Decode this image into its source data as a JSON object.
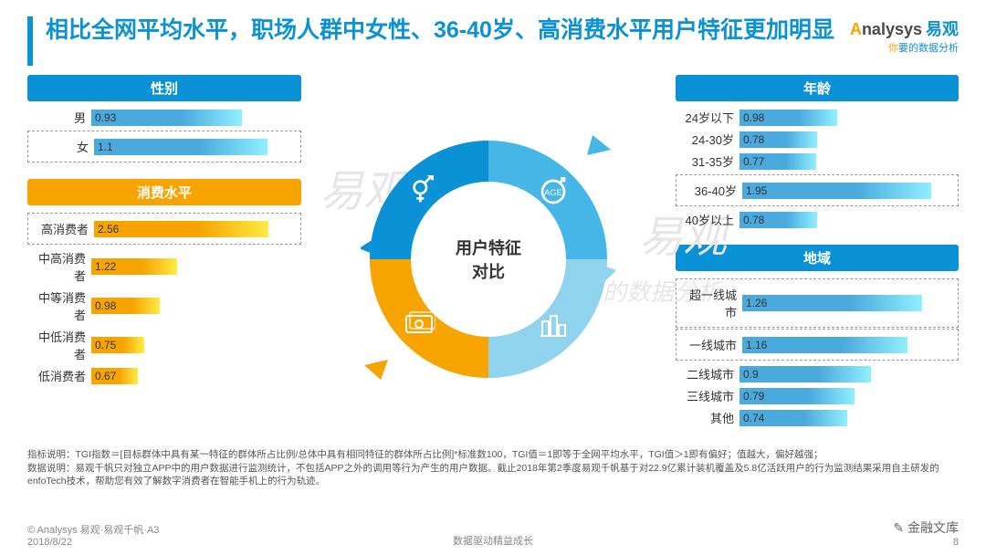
{
  "title": "相比全网平均水平，职场人群中女性、36-40岁、高消费水平用户特征更加明显",
  "logo": {
    "line1a": "nalysys",
    "cn": "易观",
    "line2": "要的数据分析",
    "line2y": "你",
    "circle": "A"
  },
  "center_labels": {
    "l1": "用户特征",
    "l2": "对比"
  },
  "quad_colors": {
    "tl": "#0b92d6",
    "tr": "#46b6e6",
    "bl": "#f7a400",
    "br": "#8fd3ef"
  },
  "sections": {
    "gender": {
      "title": "性别",
      "max": 1.3,
      "color": "#4aa9dd",
      "rows": [
        {
          "label": "男",
          "value": 0.93,
          "highlight": false
        },
        {
          "label": "女",
          "value": 1.1,
          "highlight": true
        }
      ]
    },
    "spend": {
      "title": "消费水平",
      "max": 3.0,
      "color": "#f7a400",
      "rows": [
        {
          "label": "高消费者",
          "value": 2.56,
          "highlight": true
        },
        {
          "label": "中高消费者",
          "value": 1.22,
          "highlight": false
        },
        {
          "label": "中等消费者",
          "value": 0.98,
          "highlight": false
        },
        {
          "label": "中低消费者",
          "value": 0.75,
          "highlight": false
        },
        {
          "label": "低消费者",
          "value": 0.67,
          "highlight": false
        }
      ]
    },
    "age": {
      "title": "年龄",
      "max": 2.2,
      "color": "#4aa9dd",
      "rows": [
        {
          "label": "24岁以下",
          "value": 0.98,
          "highlight": false
        },
        {
          "label": "24-30岁",
          "value": 0.78,
          "highlight": false
        },
        {
          "label": "31-35岁",
          "value": 0.77,
          "highlight": false
        },
        {
          "label": "36-40岁",
          "value": 1.95,
          "highlight": true
        },
        {
          "label": "40岁以上",
          "value": 0.78,
          "highlight": false
        }
      ]
    },
    "region": {
      "title": "地域",
      "max": 1.5,
      "color": "#4aa9dd",
      "rows": [
        {
          "label": "超一线城市",
          "value": 1.26,
          "highlight": true
        },
        {
          "label": "一线城市",
          "value": 1.16,
          "highlight": true
        },
        {
          "label": "二线城市",
          "value": 0.9,
          "highlight": false
        },
        {
          "label": "三线城市",
          "value": 0.79,
          "highlight": false
        },
        {
          "label": "其他",
          "value": 0.74,
          "highlight": false
        }
      ]
    }
  },
  "notes": {
    "n1": "指标说明：TGI指数＝[目标群体中具有某一特征的群体所占比例/总体中具有相同特征的群体所占比例]*标准数100，TGI值＝1即等于全网平均水平，TGI值＞1即有偏好；值越大，偏好越强；",
    "n2": "数据说明：易观千帆只对独立APP中的用户数据进行监测统计，不包括APP之外的调用等行为产生的用户数据。截止2018年第2季度易观千帆基于对22.9亿累计装机覆盖及5.8亿活跃用户的行为监测结果采用自主研发的enfoTech技术，帮助您有效了解数字消费者在智能手机上的行为轨迹。"
  },
  "footer": {
    "copyright": "© Analysys 易观·易观千帆·A3",
    "date": "2018/8/22",
    "center": "数据驱动精益成长",
    "page": "8",
    "stamp": "金融文库"
  },
  "watermarks": [
    "易观",
    "易观",
    "的数据分析"
  ]
}
